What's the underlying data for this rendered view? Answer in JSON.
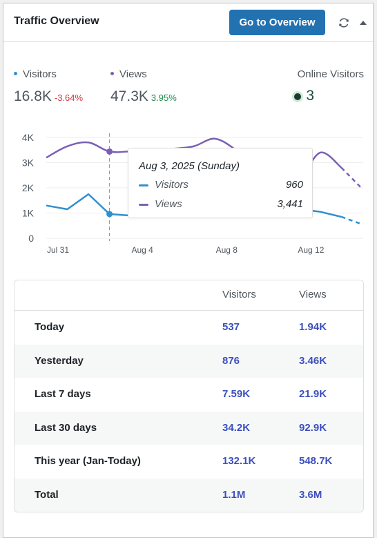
{
  "header": {
    "title": "Traffic Overview",
    "button_label": "Go to Overview",
    "refresh_icon": "refresh-icon",
    "collapse_icon": "caret-up-icon"
  },
  "stats": {
    "visitors": {
      "label": "Visitors",
      "value": "16.8K",
      "change": "-3.64%",
      "color": "#2f8fd1",
      "change_color": "#d63638"
    },
    "views": {
      "label": "Views",
      "value": "47.3K",
      "change": "3.95%",
      "color": "#7a5fb5",
      "change_color": "#1e8a4e"
    },
    "online": {
      "label": "Online Visitors",
      "value": "3"
    }
  },
  "chart_data": {
    "type": "line",
    "x": [
      "Jul 31",
      "Aug 1",
      "Aug 2",
      "Aug 3",
      "Aug 4",
      "Aug 5",
      "Aug 6",
      "Aug 7",
      "Aug 8",
      "Aug 9",
      "Aug 10",
      "Aug 11",
      "Aug 12",
      "Aug 13",
      "Aug 14",
      "Aug 15"
    ],
    "x_ticks": [
      "Jul 31",
      "Aug 4",
      "Aug 8",
      "Aug 12"
    ],
    "y_ticks": [
      "0",
      "1K",
      "2K",
      "3K",
      "4K"
    ],
    "ylim": [
      0,
      4000
    ],
    "grid": true,
    "series": [
      {
        "name": "Visitors",
        "color": "#2f8fd1",
        "values": [
          1300,
          1150,
          1750,
          960,
          900,
          1000,
          1050,
          1100,
          1000,
          1150,
          1200,
          1300,
          1150,
          1050,
          850,
          550
        ]
      },
      {
        "name": "Views",
        "color": "#7a5fb5",
        "values": [
          3200,
          3650,
          3800,
          3441,
          3450,
          3500,
          3550,
          3650,
          3950,
          3500,
          2800,
          2200,
          2350,
          3400,
          2800,
          1950
        ]
      }
    ],
    "tooltip": {
      "date": "Aug 3, 2025 (Sunday)",
      "rows": [
        {
          "label": "Visitors",
          "value": "960",
          "color": "#2f8fd1"
        },
        {
          "label": "Views",
          "value": "3,441",
          "color": "#7a5fb5"
        }
      ]
    }
  },
  "table": {
    "columns": [
      "Visitors",
      "Views"
    ],
    "rows": [
      {
        "label": "Today",
        "visitors": "537",
        "views": "1.94K"
      },
      {
        "label": "Yesterday",
        "visitors": "876",
        "views": "3.46K"
      },
      {
        "label": "Last 7 days",
        "visitors": "7.59K",
        "views": "21.9K"
      },
      {
        "label": "Last 30 days",
        "visitors": "34.2K",
        "views": "92.9K"
      },
      {
        "label": "This year (Jan-Today)",
        "visitors": "132.1K",
        "views": "548.7K"
      },
      {
        "label": "Total",
        "visitors": "1.1M",
        "views": "3.6M"
      }
    ]
  }
}
